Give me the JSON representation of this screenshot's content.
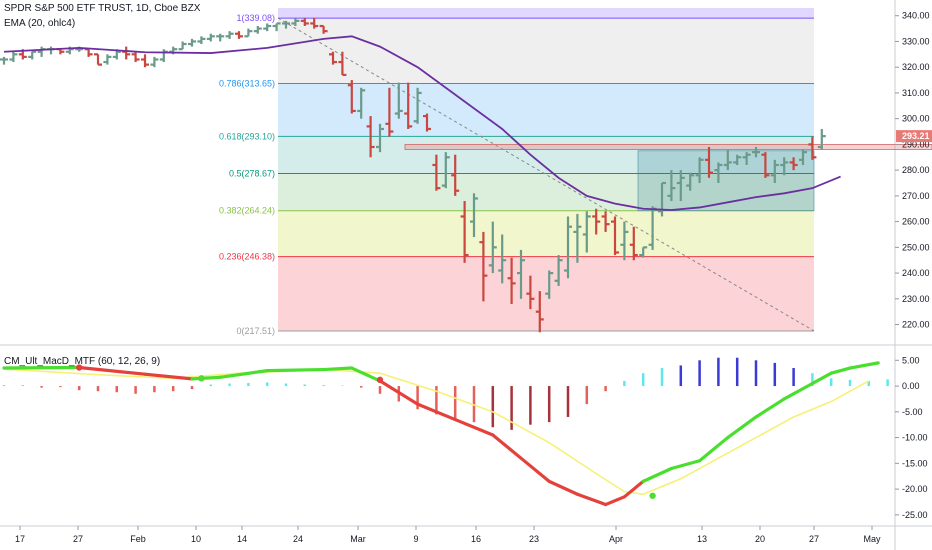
{
  "header": {
    "title": "SPDR S&P 500 ETF TRUST, 1D, Cboe BZX",
    "ema_label": "EMA (20, ohlc4)",
    "indicator_label": "CM_Ult_MacD_MTF (60, 12, 26, 9)"
  },
  "colors": {
    "up": "#6a9a8a",
    "down": "#c9473f",
    "ema": "#6b2fa0",
    "macd_green": "#4ade2f",
    "macd_red": "#e5413c",
    "signal": "#f6f176",
    "hist_cyan": "#5ee8ee",
    "hist_blue": "#3a3ad6",
    "hist_red": "#e5605b",
    "hist_darkred": "#a8323c",
    "price_badge": "#e87a76"
  },
  "chart_data": [
    {
      "type": "candlestick",
      "title": "SPDR S&P 500 ETF TRUST, 1D, Cboe BZX",
      "ylim": [
        214,
        343
      ],
      "y_ticks": [
        "340.00",
        "330.00",
        "320.00",
        "310.00",
        "300.00",
        "290.00",
        "280.00",
        "270.00",
        "260.00",
        "250.00",
        "240.00",
        "230.00",
        "220.00"
      ],
      "x_ticks": [
        "17",
        "27",
        "Feb",
        "10",
        "14",
        "24",
        "Mar",
        "9",
        "16",
        "23",
        "Apr",
        "13",
        "20",
        "27",
        "May"
      ],
      "last_price": "293.21",
      "ohlc_bars": [
        [
          323,
          324,
          321,
          323
        ],
        [
          323,
          326,
          322,
          325
        ],
        [
          325,
          327,
          323,
          324
        ],
        [
          324,
          326,
          323,
          326
        ],
        [
          326,
          328,
          324,
          327
        ],
        [
          327,
          328,
          325,
          327
        ],
        [
          327,
          327,
          325,
          326
        ],
        [
          326,
          328,
          325,
          327
        ],
        [
          327,
          328,
          326,
          327
        ],
        [
          327,
          327,
          324,
          325
        ],
        [
          325,
          325,
          321,
          321
        ],
        [
          322,
          325,
          321,
          324
        ],
        [
          324,
          327,
          323,
          326
        ],
        [
          326,
          328,
          323,
          325
        ],
        [
          325,
          326,
          322,
          323
        ],
        [
          323,
          325,
          320,
          321
        ],
        [
          321,
          324,
          320,
          323
        ],
        [
          323,
          327,
          322,
          326
        ],
        [
          326,
          328,
          325,
          327
        ],
        [
          327,
          330,
          327,
          329
        ],
        [
          329,
          331,
          328,
          330
        ],
        [
          330,
          332,
          329,
          331
        ],
        [
          331,
          333,
          330,
          332
        ],
        [
          332,
          333,
          330,
          332
        ],
        [
          332,
          334,
          331,
          333
        ],
        [
          333,
          334,
          331,
          332
        ],
        [
          332,
          335,
          332,
          334
        ],
        [
          334,
          336,
          333,
          335
        ],
        [
          335,
          337,
          334,
          336
        ],
        [
          336,
          337,
          334,
          337
        ],
        [
          337,
          338,
          335,
          337
        ],
        [
          337,
          339,
          336,
          338
        ],
        [
          338,
          339,
          336,
          337
        ],
        [
          337,
          339.08,
          335,
          336
        ],
        [
          336,
          336,
          333,
          334
        ],
        [
          325,
          326,
          321,
          322
        ],
        [
          322,
          326,
          317,
          317
        ],
        [
          313,
          315,
          302,
          303
        ],
        [
          303,
          312,
          300,
          311
        ],
        [
          297,
          301,
          285,
          289
        ],
        [
          289,
          298,
          287,
          296
        ],
        [
          298,
          312,
          293,
          295
        ],
        [
          302,
          314,
          300,
          303
        ],
        [
          302,
          314,
          296,
          297
        ],
        [
          299,
          312,
          298,
          310
        ],
        [
          301,
          302,
          295,
          296
        ],
        [
          282,
          286,
          272,
          273
        ],
        [
          274,
          287,
          273,
          285
        ],
        [
          278,
          286,
          270,
          272
        ],
        [
          262,
          268,
          244,
          247
        ],
        [
          260,
          271,
          254,
          269
        ],
        [
          252,
          256,
          229,
          239
        ],
        [
          243,
          260,
          240,
          250
        ],
        [
          241,
          255,
          236,
          245
        ],
        [
          238,
          246,
          228,
          236
        ],
        [
          240,
          249,
          230,
          245
        ],
        [
          232,
          239,
          226,
          230
        ],
        [
          225,
          233,
          217,
          222
        ],
        [
          232,
          241,
          230,
          240
        ],
        [
          237,
          247,
          235,
          245
        ],
        [
          241,
          262,
          238,
          258
        ],
        [
          256,
          263,
          244,
          258
        ],
        [
          255,
          264,
          248,
          262
        ],
        [
          262,
          265,
          255,
          260
        ],
        [
          262,
          264,
          256,
          259
        ],
        [
          260,
          262,
          247,
          248
        ],
        [
          251,
          260,
          245,
          256
        ],
        [
          251,
          258,
          245,
          247
        ],
        [
          247,
          250,
          246,
          250
        ],
        [
          251,
          266,
          249,
          265
        ],
        [
          264,
          275,
          262,
          275
        ],
        [
          270,
          280,
          268,
          273
        ],
        [
          275,
          280,
          268,
          277
        ],
        [
          274,
          279,
          272,
          278
        ],
        [
          278,
          285,
          275,
          284
        ],
        [
          284,
          289,
          277,
          279
        ],
        [
          280,
          283,
          275,
          282
        ],
        [
          282,
          288,
          280,
          283
        ],
        [
          283,
          286,
          282,
          285
        ],
        [
          285,
          287,
          282,
          286
        ],
        [
          287,
          289,
          285,
          287
        ],
        [
          286,
          287,
          277,
          278
        ],
        [
          278,
          284,
          275,
          282
        ],
        [
          282,
          285,
          278,
          283
        ],
        [
          283,
          285,
          280,
          282
        ],
        [
          284,
          288,
          282,
          287
        ],
        [
          290,
          293,
          284,
          285
        ],
        [
          289,
          296,
          288,
          293.21
        ]
      ],
      "ema": [
        [
          0,
          326
        ],
        [
          8,
          327.5
        ],
        [
          15,
          325.8
        ],
        [
          22,
          325.5
        ],
        [
          28,
          327.5
        ],
        [
          34,
          331
        ],
        [
          37,
          332
        ],
        [
          40,
          328
        ],
        [
          44,
          320
        ],
        [
          47,
          312
        ],
        [
          50,
          304
        ],
        [
          53,
          296
        ],
        [
          56,
          286
        ],
        [
          59,
          277
        ],
        [
          62,
          270
        ],
        [
          65,
          267
        ],
        [
          68,
          265
        ],
        [
          71,
          264.5
        ],
        [
          74,
          265.5
        ],
        [
          77,
          267.5
        ],
        [
          80,
          269.5
        ],
        [
          83,
          271
        ],
        [
          86,
          273
        ],
        [
          89,
          277.5
        ]
      ],
      "fib_levels": [
        {
          "label": "1(339.08)",
          "value": 339.08,
          "color": "#7c4dff",
          "fill": "rgba(124,77,255,0.22)"
        },
        {
          "label": "0.786(313.65)",
          "value": 313.65,
          "color": "#2196f3",
          "fill": "rgba(180,180,180,0.22)"
        },
        {
          "label": "0.618(293.10)",
          "value": 293.1,
          "color": "#26a69a",
          "fill": "rgba(33,150,243,0.20)"
        },
        {
          "label": "0.5(278.67)",
          "value": 278.67,
          "color": "#089981",
          "fill": "rgba(38,166,154,0.20)"
        },
        {
          "label": "0.382(264.24)",
          "value": 264.24,
          "color": "#8bc34a",
          "fill": "rgba(76,175,80,0.20)"
        },
        {
          "label": "0.236(246.38)",
          "value": 246.38,
          "color": "#f23645",
          "fill": "rgba(205,220,57,0.25)"
        },
        {
          "label": "0(217.51)",
          "value": 217.51,
          "color": "#9e9e9e",
          "fill": "rgba(242,54,69,0.22)"
        }
      ]
    },
    {
      "type": "line+histogram",
      "title": "CM_Ult_MacD_MTF (60, 12, 26, 9)",
      "ylim": [
        -26,
        7
      ],
      "y_ticks": [
        "5.00",
        "0.00",
        "-5.00",
        "-10.00",
        "-15.00",
        "-20.00",
        "-25.00"
      ],
      "series": [
        {
          "name": "MACD",
          "points": [
            [
              0,
              3.5
            ],
            [
              8,
              3.6
            ],
            [
              15,
              2.3
            ],
            [
              20,
              1.4
            ],
            [
              23,
              1.7
            ],
            [
              28,
              3.0
            ],
            [
              34,
              3.2
            ],
            [
              37,
              3.5
            ],
            [
              40,
              1.0
            ],
            [
              44,
              -3.5
            ],
            [
              48,
              -6.5
            ],
            [
              52,
              -9.5
            ],
            [
              55,
              -14
            ],
            [
              58,
              -18.5
            ],
            [
              61,
              -21
            ],
            [
              64,
              -23
            ],
            [
              66,
              -21.5
            ],
            [
              68,
              -18.5
            ],
            [
              71,
              -16
            ],
            [
              74,
              -14.5
            ],
            [
              77,
              -10
            ],
            [
              80,
              -6
            ],
            [
              83,
              -2.5
            ],
            [
              86,
              0.5
            ],
            [
              88,
              2.5
            ],
            [
              90,
              3.5
            ],
            [
              93,
              4.5
            ]
          ]
        },
        {
          "name": "Signal",
          "points": [
            [
              0,
              3.3
            ],
            [
              10,
              2.2
            ],
            [
              18,
              1.5
            ],
            [
              25,
              2.5
            ],
            [
              34,
              3.2
            ],
            [
              40,
              2.5
            ],
            [
              46,
              -1
            ],
            [
              52,
              -5
            ],
            [
              58,
              -11
            ],
            [
              63,
              -17
            ],
            [
              66,
              -20.5
            ],
            [
              68,
              -21
            ],
            [
              72,
              -18
            ],
            [
              76,
              -14
            ],
            [
              80,
              -10
            ],
            [
              84,
              -6
            ],
            [
              88,
              -3
            ],
            [
              92,
              1
            ]
          ]
        }
      ],
      "histogram": [
        [
          0,
          0.2
        ],
        [
          2,
          0.2
        ],
        [
          4,
          -0.3
        ],
        [
          6,
          -0.2
        ],
        [
          8,
          -0.8
        ],
        [
          10,
          -1
        ],
        [
          12,
          -1.2
        ],
        [
          14,
          -1.5
        ],
        [
          16,
          -1.2
        ],
        [
          18,
          -1
        ],
        [
          20,
          -0.6
        ],
        [
          22,
          0.3
        ],
        [
          24,
          0.5
        ],
        [
          26,
          0.6
        ],
        [
          28,
          0.7
        ],
        [
          30,
          0.5
        ],
        [
          32,
          0.3
        ],
        [
          34,
          0.2
        ],
        [
          36,
          0.1
        ],
        [
          38,
          -0.3
        ],
        [
          40,
          -1.5
        ],
        [
          42,
          -3
        ],
        [
          44,
          -4.5
        ],
        [
          46,
          -5.5
        ],
        [
          48,
          -6.5
        ],
        [
          50,
          -7
        ],
        [
          52,
          -8
        ],
        [
          54,
          -8.5
        ],
        [
          56,
          -7.5
        ],
        [
          58,
          -7
        ],
        [
          60,
          -6
        ],
        [
          62,
          -3.5
        ],
        [
          64,
          -1
        ],
        [
          66,
          1
        ],
        [
          68,
          2.5
        ],
        [
          70,
          3.5
        ],
        [
          72,
          4
        ],
        [
          74,
          5
        ],
        [
          76,
          5.5
        ],
        [
          78,
          5.5
        ],
        [
          80,
          5
        ],
        [
          82,
          4.5
        ],
        [
          84,
          3.5
        ],
        [
          86,
          2.5
        ],
        [
          88,
          1.5
        ],
        [
          90,
          1.2
        ],
        [
          92,
          1
        ],
        [
          94,
          1.3
        ]
      ],
      "markers": [
        [
          8,
          3.6
        ],
        [
          21,
          1.5
        ],
        [
          40,
          1.2
        ],
        [
          69,
          -21.3
        ]
      ]
    }
  ]
}
